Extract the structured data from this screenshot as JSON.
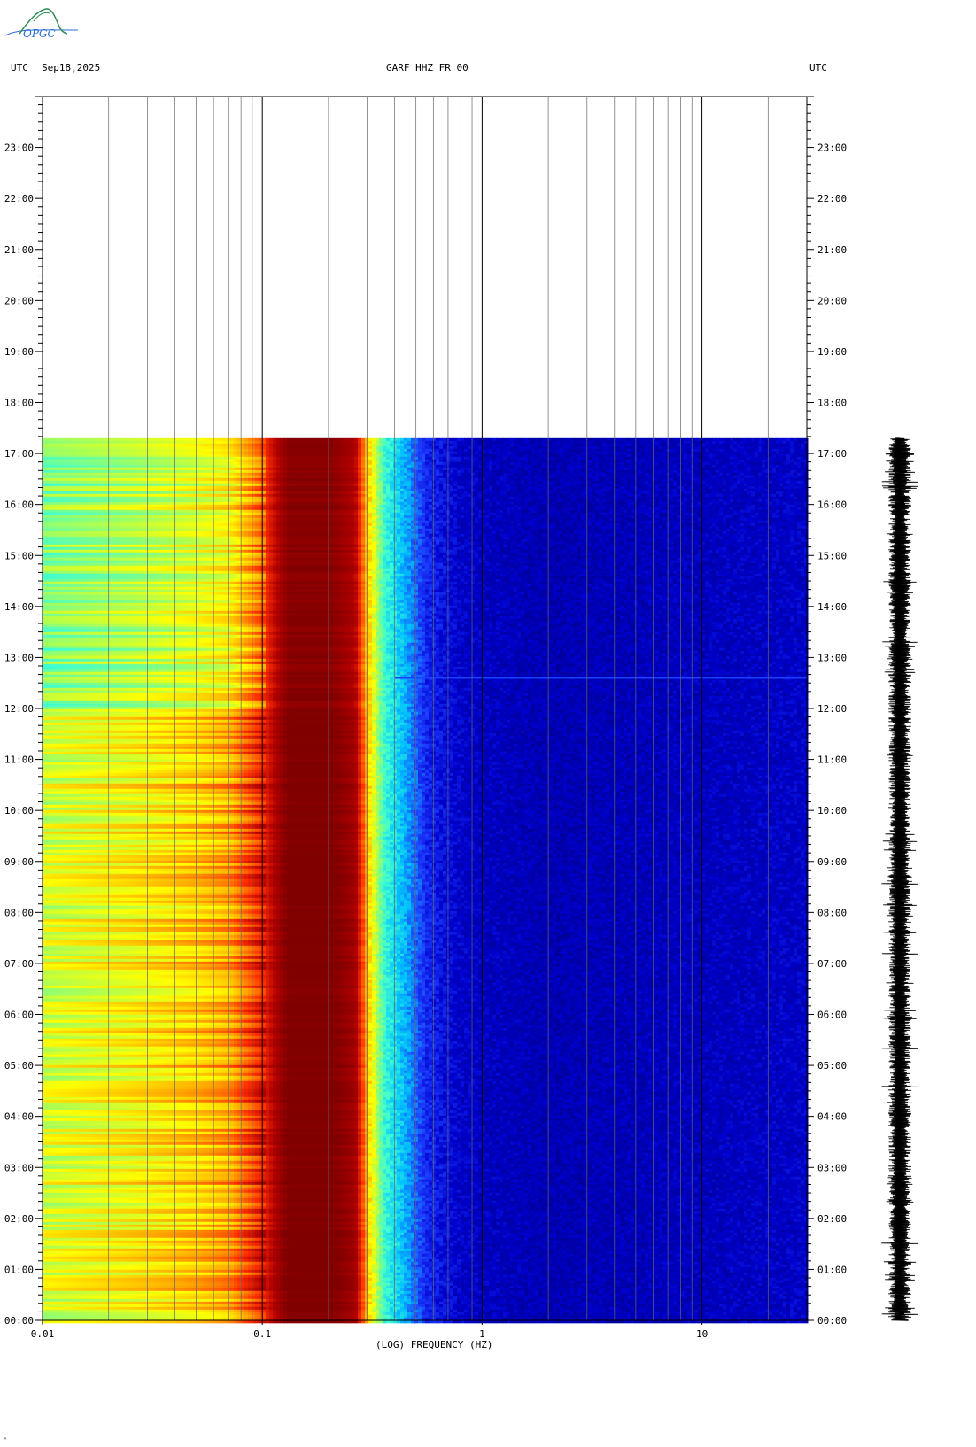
{
  "header": {
    "left_utc": "UTC",
    "date": "Sep18,2025",
    "station": "GARF HHZ FR 00",
    "right_utc": "UTC"
  },
  "logo": {
    "text": "OPGC"
  },
  "chart_data": {
    "type": "heatmap",
    "title": "GARF HHZ FR 00",
    "xlabel": "(LOG) FREQUENCY (HZ)",
    "xscale": "log",
    "xlim": [
      0.01,
      30
    ],
    "x_tick_labels": [
      "0.01",
      "0.1",
      "1",
      "10"
    ],
    "x_tick_values": [
      0.01,
      0.1,
      1,
      10
    ],
    "ylabel_left": "UTC",
    "ylabel_right": "UTC",
    "ylim_hours": [
      0,
      24
    ],
    "y_tick_labels": [
      "00:00",
      "01:00",
      "02:00",
      "03:00",
      "04:00",
      "05:00",
      "06:00",
      "07:00",
      "08:00",
      "09:00",
      "10:00",
      "11:00",
      "12:00",
      "13:00",
      "14:00",
      "15:00",
      "16:00",
      "17:00",
      "18:00",
      "19:00",
      "20:00",
      "21:00",
      "22:00",
      "23:00"
    ],
    "data_end_hour": 17.3,
    "colormap": [
      "#00008b",
      "#0000cd",
      "#1e40ff",
      "#00bfff",
      "#40ffd0",
      "#a0ff60",
      "#ffff00",
      "#ffa500",
      "#ff3000",
      "#b00000",
      "#800000"
    ],
    "spectral_profile": [
      {
        "freq": 0.01,
        "level": 5.3
      },
      {
        "freq": 0.025,
        "level": 5.8
      },
      {
        "freq": 0.05,
        "level": 6.3
      },
      {
        "freq": 0.07,
        "level": 6.7
      },
      {
        "freq": 0.1,
        "level": 8.2
      },
      {
        "freq": 0.13,
        "level": 10.0
      },
      {
        "freq": 0.2,
        "level": 10.0
      },
      {
        "freq": 0.26,
        "level": 9.2
      },
      {
        "freq": 0.3,
        "level": 6.5
      },
      {
        "freq": 0.35,
        "level": 4.0
      },
      {
        "freq": 0.45,
        "level": 2.8
      },
      {
        "freq": 0.55,
        "level": 1.6
      },
      {
        "freq": 0.8,
        "level": 0.9
      },
      {
        "freq": 2,
        "level": 0.6
      },
      {
        "freq": 30,
        "level": 0.9
      }
    ],
    "events": [
      {
        "hour": 12.6,
        "freq_range": [
          0.4,
          30
        ],
        "label": ""
      }
    ],
    "waveform": {
      "hour_range": [
        0,
        17.3
      ]
    },
    "grid": true
  }
}
